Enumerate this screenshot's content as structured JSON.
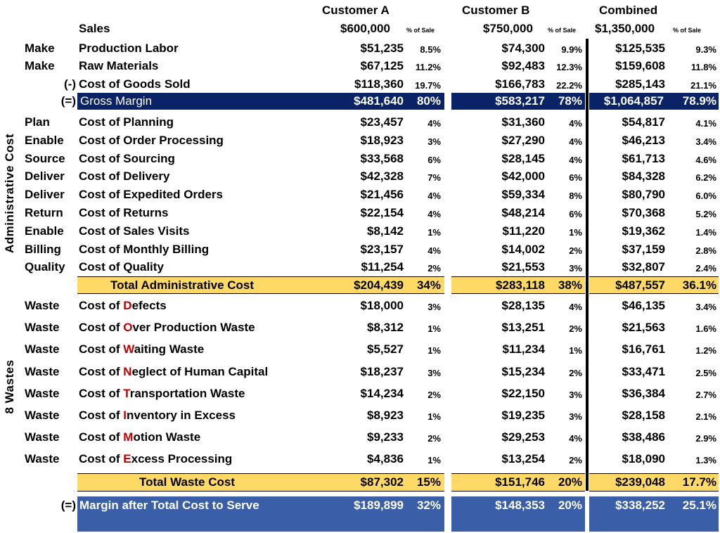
{
  "headers": {
    "customer_a": "Customer A",
    "customer_b": "Customer B",
    "combined": "Combined",
    "sales_label": "Sales",
    "sales_a": "$600,000",
    "sales_b": "$750,000",
    "sales_c": "$1,350,000",
    "pct_of_sale": "% of Sale"
  },
  "side_labels": {
    "admin": "Administrative Cost",
    "wastes": "8 Wastes"
  },
  "cogs_rows": [
    {
      "cat": "Make",
      "prefix": "",
      "name": "Production Labor",
      "a": "$51,235",
      "ap": "8.5%",
      "b": "$74,300",
      "bp": "9.9%",
      "c": "$125,535",
      "cp": "9.3%"
    },
    {
      "cat": "Make",
      "prefix": "",
      "name": "Raw Materials",
      "a": "$67,125",
      "ap": "11.2%",
      "b": "$92,483",
      "bp": "12.3%",
      "c": "$159,608",
      "cp": "11.8%"
    },
    {
      "cat": "",
      "prefix": "(-)",
      "name": "Cost of Goods Sold",
      "a": "$118,360",
      "ap": "19.7%",
      "b": "$166,783",
      "bp": "22.2%",
      "c": "$285,143",
      "cp": "21.1%"
    }
  ],
  "gross_margin": {
    "prefix": "(=)",
    "name": "Gross Margin",
    "a": "$481,640",
    "ap": "80%",
    "b": "$583,217",
    "bp": "78%",
    "c": "$1,064,857",
    "cp": "78.9%"
  },
  "admin_rows": [
    {
      "cat": "Plan",
      "name": "Cost of Planning",
      "a": "$23,457",
      "ap": "4%",
      "b": "$31,360",
      "bp": "4%",
      "c": "$54,817",
      "cp": "4.1%"
    },
    {
      "cat": "Enable",
      "name": "Cost of Order Processing",
      "a": "$18,923",
      "ap": "3%",
      "b": "$27,290",
      "bp": "4%",
      "c": "$46,213",
      "cp": "3.4%"
    },
    {
      "cat": "Source",
      "name": "Cost of Sourcing",
      "a": "$33,568",
      "ap": "6%",
      "b": "$28,145",
      "bp": "4%",
      "c": "$61,713",
      "cp": "4.6%"
    },
    {
      "cat": "Deliver",
      "name": "Cost of Delivery",
      "a": "$42,328",
      "ap": "7%",
      "b": "$42,000",
      "bp": "6%",
      "c": "$84,328",
      "cp": "6.2%"
    },
    {
      "cat": "Deliver",
      "name": "Cost of Expedited Orders",
      "a": "$21,456",
      "ap": "4%",
      "b": "$59,334",
      "bp": "8%",
      "c": "$80,790",
      "cp": "6.0%"
    },
    {
      "cat": "Return",
      "name": "Cost of Returns",
      "a": "$22,154",
      "ap": "4%",
      "b": "$48,214",
      "bp": "6%",
      "c": "$70,368",
      "cp": "5.2%"
    },
    {
      "cat": "Enable",
      "name": "Cost of Sales Visits",
      "a": "$8,142",
      "ap": "1%",
      "b": "$11,220",
      "bp": "1%",
      "c": "$19,362",
      "cp": "1.4%"
    },
    {
      "cat": "Billing",
      "name": "Cost of Monthly Billing",
      "a": "$23,157",
      "ap": "4%",
      "b": "$14,002",
      "bp": "2%",
      "c": "$37,159",
      "cp": "2.8%"
    },
    {
      "cat": "Quality",
      "name": "Cost of Quality",
      "a": "$11,254",
      "ap": "2%",
      "b": "$21,553",
      "bp": "3%",
      "c": "$32,807",
      "cp": "2.4%"
    }
  ],
  "admin_total": {
    "name": "Total Administrative Cost",
    "a": "$204,439",
    "ap": "34%",
    "b": "$283,118",
    "bp": "38%",
    "c": "$487,557",
    "cp": "36.1%"
  },
  "waste_rows": [
    {
      "cat": "Waste",
      "pre": "Cost of ",
      "letter": "D",
      "post": "efects",
      "a": "$18,000",
      "ap": "3%",
      "b": "$28,135",
      "bp": "4%",
      "c": "$46,135",
      "cp": "3.4%"
    },
    {
      "cat": "Waste",
      "pre": "Cost of ",
      "letter": "O",
      "post": "ver Production Waste",
      "a": "$8,312",
      "ap": "1%",
      "b": "$13,251",
      "bp": "2%",
      "c": "$21,563",
      "cp": "1.6%"
    },
    {
      "cat": "Waste",
      "pre": "Cost of ",
      "letter": "W",
      "post": "aiting Waste",
      "a": "$5,527",
      "ap": "1%",
      "b": "$11,234",
      "bp": "1%",
      "c": "$16,761",
      "cp": "1.2%"
    },
    {
      "cat": "Waste",
      "pre": "Cost of ",
      "letter": "N",
      "post": "eglect of Human Capital",
      "a": "$18,237",
      "ap": "3%",
      "b": "$15,234",
      "bp": "2%",
      "c": "$33,471",
      "cp": "2.5%"
    },
    {
      "cat": "Waste",
      "pre": "Cost of ",
      "letter": "T",
      "post": "ransportation Waste",
      "a": "$14,234",
      "ap": "2%",
      "b": "$22,150",
      "bp": "3%",
      "c": "$36,384",
      "cp": "2.7%"
    },
    {
      "cat": "Waste",
      "pre": "Cost of ",
      "letter": "I",
      "post": "nventory in Excess",
      "a": "$8,923",
      "ap": "1%",
      "b": "$19,235",
      "bp": "3%",
      "c": "$28,158",
      "cp": "2.1%"
    },
    {
      "cat": "Waste",
      "pre": "Cost of ",
      "letter": "M",
      "post": "otion Waste",
      "a": "$9,233",
      "ap": "2%",
      "b": "$29,253",
      "bp": "4%",
      "c": "$38,486",
      "cp": "2.9%"
    },
    {
      "cat": "Waste",
      "pre": "Cost of ",
      "letter": "E",
      "post": "xcess Processing",
      "a": "$4,836",
      "ap": "1%",
      "b": "$13,254",
      "bp": "2%",
      "c": "$18,090",
      "cp": "1.3%"
    }
  ],
  "waste_total": {
    "name": "Total Waste Cost",
    "a": "$87,302",
    "ap": "15%",
    "b": "$151,746",
    "bp": "20%",
    "c": "$239,048",
    "cp": "17.7%"
  },
  "final_margin": {
    "prefix": "(=)",
    "name": "Margin after Total Cost to Serve",
    "a": "$189,899",
    "ap": "32%",
    "b": "$148,353",
    "bp": "20%",
    "c": "$338,252",
    "cp": "25.1%"
  },
  "colors": {
    "navy": "#0a2366",
    "yellow": "#ffd966",
    "blue": "#3a5fa8",
    "red": "#c00000"
  }
}
